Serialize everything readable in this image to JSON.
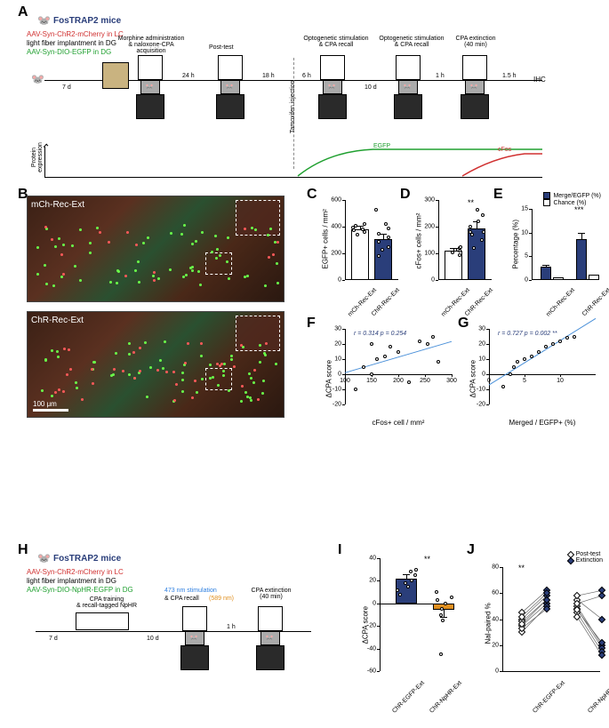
{
  "labels": {
    "A": "A",
    "B": "B",
    "C": "C",
    "D": "D",
    "E": "E",
    "F": "F",
    "G": "G",
    "H": "H",
    "I": "I",
    "J": "J"
  },
  "panelA": {
    "mouse_line": "FosTRAP2 mice",
    "virus1": "AAV-Syn-ChR2-mCherry in LC",
    "virus2": "light fiber implantment in DG",
    "virus3": "AAV-Syn-DIO-EGFP in DG",
    "virus1_color": "#d03030",
    "virus3_color": "#20a030",
    "stage_morphine": "Morphine administration\n& naloxone-CPA acquisition",
    "stage_posttest": "Post-test",
    "stage_opto1": "Optogenetic stimulation\n& CPA recall",
    "stage_opto2": "Optogenetic stimulation\n& CPA recall",
    "stage_ext": "CPA extinction\n(40 min)",
    "ihc": "IHC",
    "d7": "7 d",
    "h24": "24 h",
    "h18": "18 h",
    "h6": "6 h",
    "d10": "10 d",
    "h1": "1 h",
    "h15": "1.5 h",
    "tamoxifen": "Tamoxifen injection",
    "protein_y": "Protein\nexpression",
    "egfp_label": "EGFP",
    "cfos_label": "cFos",
    "egfp_color": "#20a030",
    "cfos_color": "#d03030"
  },
  "panelB": {
    "label_top": "mCh-Rec-Ext",
    "label_bot": "ChR-Rec-Ext",
    "scale": "100 μm"
  },
  "panelC": {
    "ylabel": "EGFP+ cells / mm²",
    "ymax": 600,
    "yticks": [
      0,
      200,
      400,
      600
    ],
    "groups": [
      "mCh-Rec-Ext",
      "ChR-Rec-Ext"
    ],
    "means": [
      380,
      310
    ],
    "sems": [
      25,
      40
    ],
    "points": {
      "0": [
        340,
        360,
        380,
        395,
        410,
        420,
        375
      ],
      "1": [
        180,
        230,
        290,
        320,
        350,
        390,
        420,
        530,
        250
      ]
    },
    "colors": [
      "#ffffff",
      "#2a3e7a"
    ]
  },
  "panelD": {
    "ylabel": "cFos+ cells / mm²",
    "ymax": 300,
    "yticks": [
      0,
      100,
      200,
      300
    ],
    "groups": [
      "mCh-Rec-Ext",
      "ChR-Rec-Ext"
    ],
    "means": [
      110,
      195
    ],
    "sems": [
      10,
      25
    ],
    "points": {
      "0": [
        95,
        105,
        110,
        115,
        120,
        125
      ],
      "1": [
        120,
        150,
        180,
        200,
        220,
        245,
        265,
        180,
        170
      ]
    },
    "colors": [
      "#ffffff",
      "#2a3e7a"
    ],
    "sig": "**"
  },
  "panelE": {
    "ylabel": "Percentage (%)",
    "ymax": 15,
    "yticks": [
      0,
      5,
      10,
      15
    ],
    "legend": [
      "Merge/EGFP (%)",
      "Chance (%)"
    ],
    "groups": [
      "mCh-Rec-Ext",
      "ChR-Rec-Ext"
    ],
    "merge_means": [
      2.8,
      8.7
    ],
    "merge_sems": [
      0.4,
      1.2
    ],
    "chance_means": [
      0.6,
      1.1
    ],
    "colors": {
      "merge": "#2a3e7a",
      "chance": "#ffffff"
    },
    "sig": "***"
  },
  "panelF": {
    "ylabel": "ΔCPA score",
    "xlabel": "cFos+ cell / mm²",
    "ylim": [
      -20,
      30
    ],
    "yticks": [
      -20,
      -10,
      0,
      10,
      20,
      30
    ],
    "xlim": [
      100,
      300
    ],
    "xticks": [
      100,
      150,
      200,
      250,
      300
    ],
    "stats": "r = 0.314   p = 0.254",
    "stats_color": "#2a3e7a",
    "points": [
      [
        120,
        -10
      ],
      [
        135,
        5
      ],
      [
        150,
        0
      ],
      [
        160,
        10
      ],
      [
        175,
        12
      ],
      [
        185,
        18
      ],
      [
        200,
        15
      ],
      [
        220,
        -5
      ],
      [
        240,
        22
      ],
      [
        255,
        20
      ],
      [
        265,
        25
      ],
      [
        275,
        8
      ],
      [
        150,
        20
      ]
    ]
  },
  "panelG": {
    "ylabel": "ΔCPA score",
    "xlabel": "Merged / EGFP+ (%)",
    "ylim": [
      -20,
      30
    ],
    "yticks": [
      -20,
      -10,
      0,
      10,
      20,
      30
    ],
    "xlim": [
      0,
      15
    ],
    "xticks": [
      0,
      5,
      10
    ],
    "stats": "r = 0.727   p = 0.002  **",
    "stats_color": "#2a3e7a",
    "points": [
      [
        2,
        -8
      ],
      [
        3,
        0
      ],
      [
        3.5,
        5
      ],
      [
        4,
        8
      ],
      [
        5,
        10
      ],
      [
        6,
        12
      ],
      [
        7,
        15
      ],
      [
        8,
        18
      ],
      [
        9,
        20
      ],
      [
        10,
        22
      ],
      [
        11,
        24
      ],
      [
        12,
        25
      ]
    ]
  },
  "panelH": {
    "mouse_line": "FosTRAP2 mice",
    "virus1": "AAV-Syn-ChR2-mCherry in LC",
    "virus2": "light fiber implantment in DG",
    "virus3": "AAV-Syn-DIO-NpHR-EGFP in DG",
    "virus1_color": "#d03030",
    "virus3_color": "#20a030",
    "stage_train": "CPA training\n& recall-tagged NpHR",
    "stage_stim_a": "473 nm stimulation",
    "stage_stim_b": "& CPA recall",
    "stim_589": "(589 nm)",
    "stim_473_color": "#3080e0",
    "stim_589_color": "#e09020",
    "stage_ext": "CPA extinction\n(40 min)",
    "d7": "7 d",
    "d10": "10 d",
    "h1": "1 h"
  },
  "panelI": {
    "ylabel": "ΔCPA score",
    "ylim": [
      -60,
      40
    ],
    "yticks": [
      -60,
      -40,
      -20,
      0,
      20,
      40
    ],
    "groups": [
      "ChR-EGFP-Ext",
      "ChR-NpHR-Ext"
    ],
    "means": [
      22,
      -6
    ],
    "sems": [
      4,
      6
    ],
    "colors": [
      "#2a3e7a",
      "#e09020"
    ],
    "points": {
      "0": [
        8,
        15,
        20,
        25,
        28,
        30,
        18,
        12
      ],
      "1": [
        -45,
        -15,
        -5,
        0,
        5,
        10,
        -10,
        3
      ]
    },
    "sig": "**"
  },
  "panelJ": {
    "ylabel": "Nal-paired %",
    "ylim": [
      0,
      80
    ],
    "yticks": [
      0,
      20,
      40,
      60,
      80
    ],
    "legend": [
      "Post-test",
      "Extinction"
    ],
    "groups": [
      "ChR-EGFP-Ext",
      "ChR-NpHR-Ext"
    ],
    "pairs": {
      "0": [
        [
          40,
          58
        ],
        [
          38,
          55
        ],
        [
          35,
          52
        ],
        [
          45,
          62
        ],
        [
          42,
          60
        ],
        [
          30,
          50
        ],
        [
          33,
          48
        ],
        [
          36,
          55
        ]
      ],
      "1": [
        [
          55,
          40
        ],
        [
          50,
          20
        ],
        [
          48,
          18
        ],
        [
          52,
          58
        ],
        [
          45,
          15
        ],
        [
          58,
          62
        ],
        [
          42,
          12
        ],
        [
          47,
          22
        ]
      ]
    },
    "sig": "**"
  }
}
